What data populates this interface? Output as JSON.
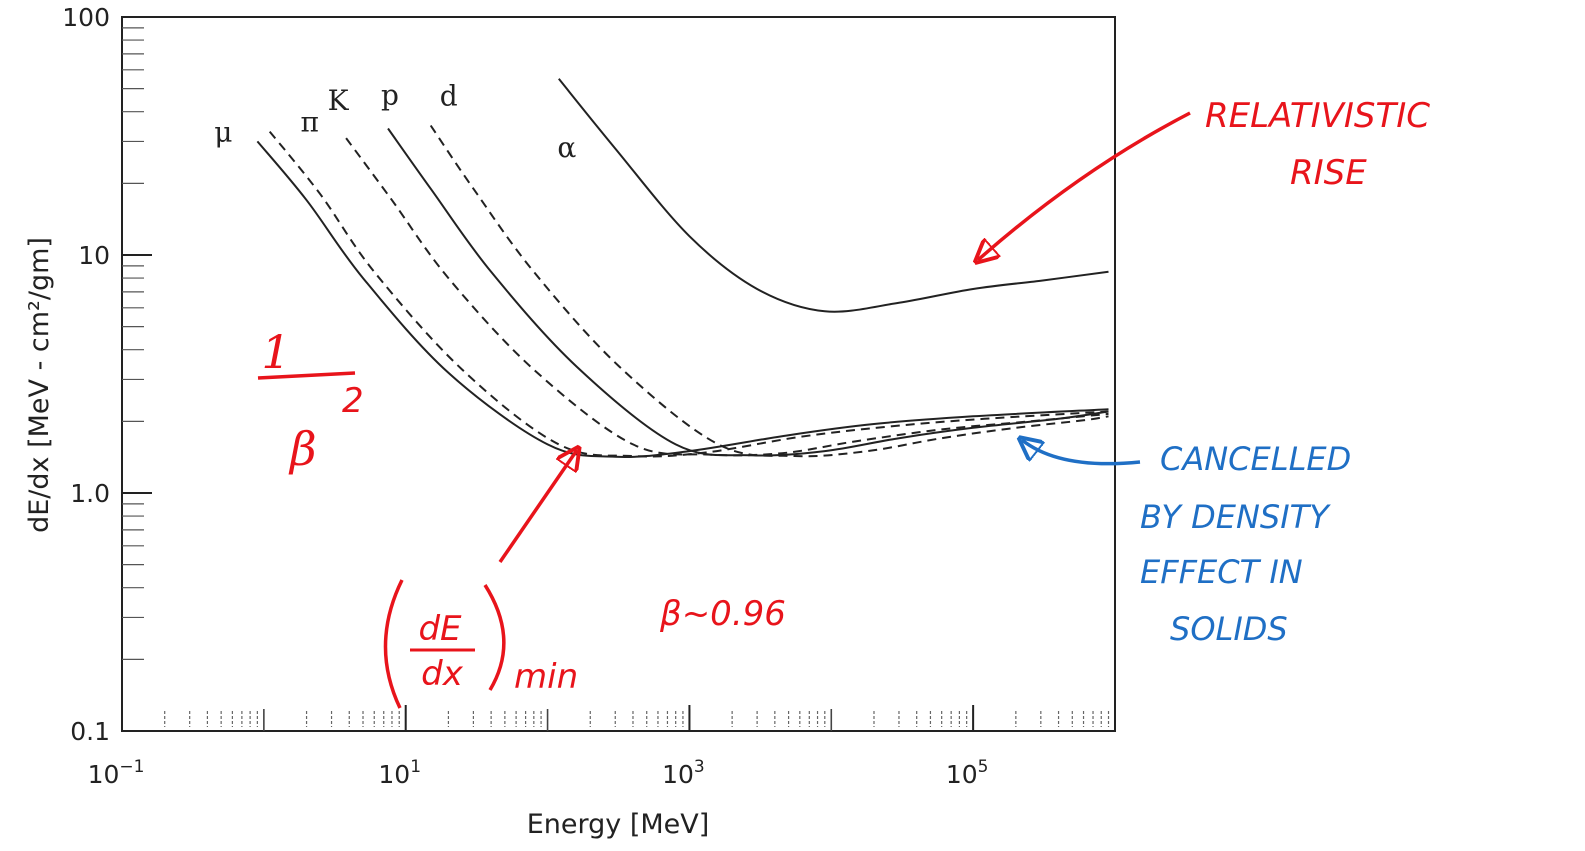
{
  "chart_data": {
    "type": "line",
    "xlabel": "Energy [MeV]",
    "ylabel": "dE/dx [MeV - cm²/gm]",
    "xscale": "log",
    "yscale": "log",
    "xlim": [
      0.1,
      1000000
    ],
    "ylim": [
      0.1,
      100
    ],
    "x_ticks": [
      {
        "value": 0.1,
        "base": "10",
        "exp": "−1"
      },
      {
        "value": 10,
        "base": "10",
        "exp": "1"
      },
      {
        "value": 1000,
        "base": "10",
        "exp": "3"
      },
      {
        "value": 100000,
        "base": "10",
        "exp": "5"
      }
    ],
    "y_ticks": [
      {
        "value": 100,
        "label": "100"
      },
      {
        "value": 10,
        "label": "10"
      },
      {
        "value": 1,
        "label": "1.0"
      },
      {
        "value": 0.1,
        "label": "0.1"
      }
    ],
    "series": [
      {
        "name": "μ",
        "style": "solid",
        "x": [
          0.9,
          2,
          5,
          20,
          100,
          300,
          1000,
          5000,
          20000,
          100000,
          900000
        ],
        "y": [
          30,
          17,
          8,
          3.2,
          1.6,
          1.42,
          1.5,
          1.75,
          1.95,
          2.1,
          2.25
        ]
      },
      {
        "name": "π",
        "style": "dashed",
        "x": [
          1.1,
          2.5,
          6,
          25,
          120,
          400,
          1300,
          6000,
          25000,
          120000,
          900000
        ],
        "y": [
          33,
          18,
          8.5,
          3.3,
          1.6,
          1.43,
          1.48,
          1.72,
          1.9,
          2.05,
          2.2
        ]
      },
      {
        "name": "K",
        "style": "dashed",
        "x": [
          3.8,
          8,
          20,
          80,
          400,
          1400,
          4500,
          15000,
          60000,
          250000,
          900000
        ],
        "y": [
          31,
          17,
          8,
          3.3,
          1.6,
          1.45,
          1.47,
          1.65,
          1.85,
          2.0,
          2.15
        ]
      },
      {
        "name": "p",
        "style": "solid",
        "x": [
          7.5,
          15,
          40,
          160,
          800,
          2700,
          9000,
          30000,
          100000,
          400000,
          900000
        ],
        "y": [
          34,
          19,
          8.5,
          3.4,
          1.6,
          1.44,
          1.5,
          1.7,
          1.88,
          2.05,
          2.2
        ]
      },
      {
        "name": "d",
        "style": "dashed",
        "x": [
          15,
          30,
          80,
          320,
          1600,
          5500,
          18000,
          60000,
          200000,
          600000,
          900000
        ],
        "y": [
          35,
          19,
          8.5,
          3.4,
          1.6,
          1.43,
          1.5,
          1.7,
          1.88,
          2.02,
          2.1
        ]
      },
      {
        "name": "α",
        "style": "solid",
        "x": [
          120,
          300,
          1000,
          3000,
          9000,
          30000,
          100000,
          300000,
          900000
        ],
        "y": [
          55,
          28,
          12,
          7.2,
          5.8,
          6.3,
          7.2,
          7.8,
          8.5
        ]
      }
    ]
  },
  "annotations": {
    "relativistic_rise": {
      "line1": "RELATIVISTIC",
      "line2": "RISE"
    },
    "one_over_beta_sq": {
      "numerator": "1",
      "denominator": "β",
      "exponent": "2"
    },
    "dedx_min": {
      "numerator": "dE",
      "denominator": "dx",
      "subscript": "min"
    },
    "beta_value": "β~0.96",
    "density_effect": {
      "line1": "CANCELLED",
      "line2": "BY DENSITY",
      "line3": "EFFECT   IN",
      "line4": "SOLIDS"
    }
  },
  "colors": {
    "red": "#e8141b",
    "blue": "#1f6fc5",
    "ink": "#222222"
  }
}
